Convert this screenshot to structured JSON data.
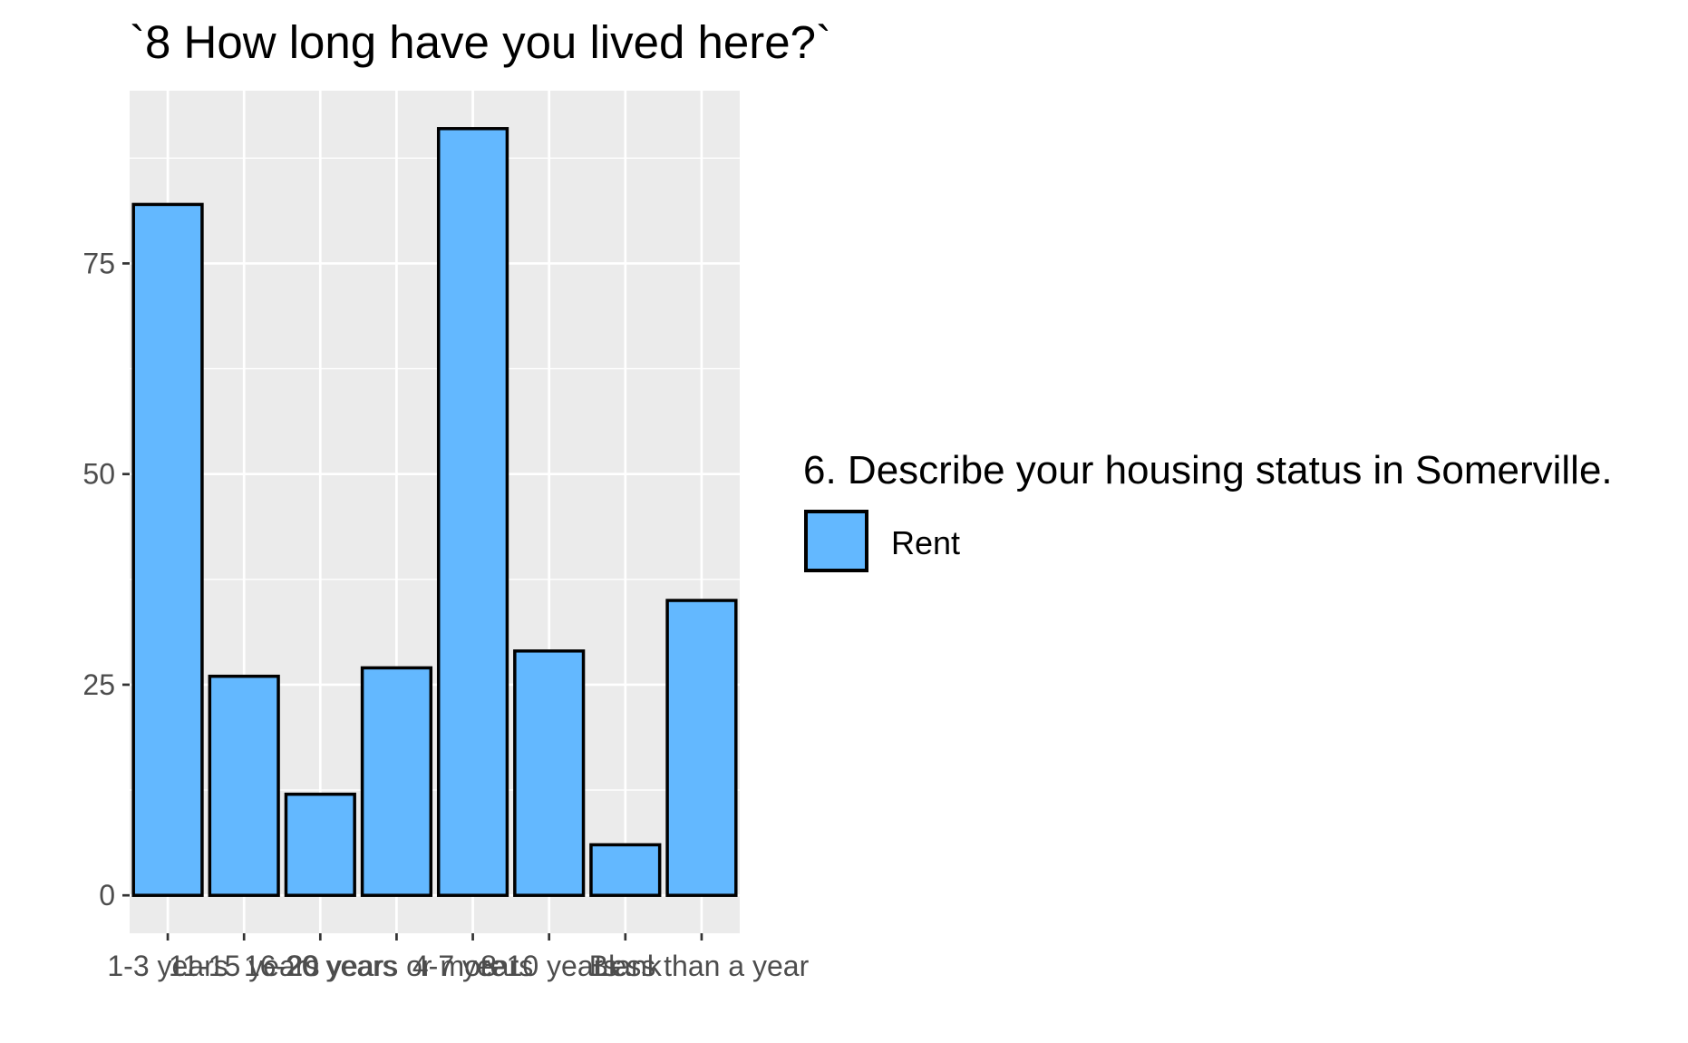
{
  "chart_data": {
    "type": "bar",
    "title": "`8 How long have you lived here?`",
    "xlabel": "",
    "ylabel": "",
    "categories": [
      "1-3 years",
      "11-15 years",
      "16-20 years",
      "20 years or more",
      "4-7 years",
      "8-10 years",
      "Blank",
      "Less than a year"
    ],
    "series": [
      {
        "name": "Rent",
        "values": [
          82,
          26,
          12,
          27,
          91,
          29,
          6,
          35
        ]
      }
    ],
    "ylim": [
      -4.5,
      95.5
    ],
    "yticks": [
      0,
      25,
      50,
      75
    ],
    "grid": true,
    "legend": {
      "title": "6. Describe your housing status in Somerville.",
      "placement": "right",
      "items": [
        {
          "label": "Rent",
          "color": "#63b8ff"
        }
      ]
    },
    "colors": {
      "bar_fill": "#63b8ff",
      "bar_stroke": "#000000",
      "panel_bg": "#ebebeb",
      "grid_major": "#ffffff"
    }
  }
}
